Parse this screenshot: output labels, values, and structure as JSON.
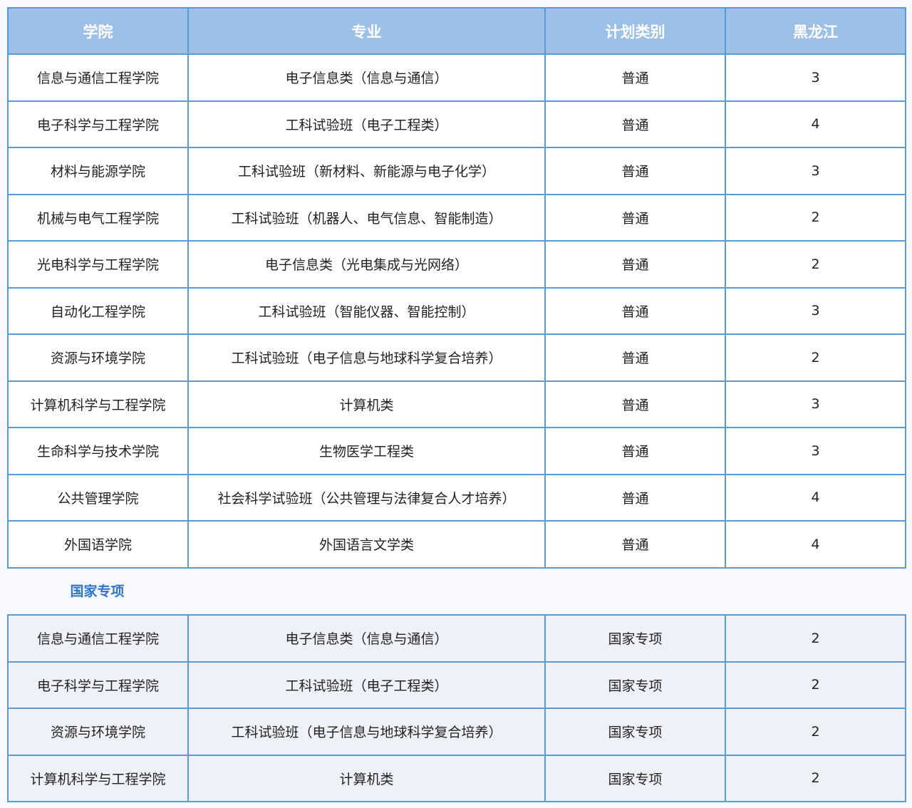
{
  "headers": [
    "学院",
    "专业",
    "计划类别",
    "黑龙江"
  ],
  "rows": [
    [
      "信息与通信工程学院",
      "电子信息类（信息与通信）",
      "普通",
      "3"
    ],
    [
      "电子科学与工程学院",
      "工科试验班（电子工程类）",
      "普通",
      "4"
    ],
    [
      "材料与能源学院",
      "工科试验班（新材料、新能源与电子化学）",
      "普通",
      "3"
    ],
    [
      "机械与电气工程学院",
      "工科试验班（机器人、电气信息、智能制造）",
      "普通",
      "2"
    ],
    [
      "光电科学与工程学院",
      "电子信息类（光电集成与光网络）",
      "普通",
      "2"
    ],
    [
      "自动化工程学院",
      "工科试验班（智能仪器、智能控制）",
      "普通",
      "3"
    ],
    [
      "资源与环境学院",
      "工科试验班（电子信息与地球科学复合培养）",
      "普通",
      "2"
    ],
    [
      "计算机科学与工程学院",
      "计算机类",
      "普通",
      "3"
    ],
    [
      "生命科学与技术学院",
      "生物医学工程类",
      "普通",
      "3"
    ],
    [
      "公共管理学院",
      "社会科学试验班（公共管理与法律复合人才培养）",
      "普通",
      "4"
    ],
    [
      "外国语学院",
      "外国语言文学类",
      "普通",
      "4"
    ]
  ],
  "section_label": "国家专项",
  "special_rows": [
    [
      "信息与通信工程学院",
      "电子信息类（信息与通信）",
      "国家专项",
      "2"
    ],
    [
      "电子科学与工程学院",
      "工科试验班（电子工程类）",
      "国家专项",
      "2"
    ],
    [
      "资源与环境学院",
      "工科试验班（电子信息与地球科学复合培养）",
      "国家专项",
      "2"
    ],
    [
      "计算机科学与工程学院",
      "计算机类",
      "国家专项",
      "2"
    ]
  ],
  "colors": {
    "header_bg": "#9dc0e6",
    "border": "#5b9bd5",
    "section_label": "#2f74c9"
  }
}
